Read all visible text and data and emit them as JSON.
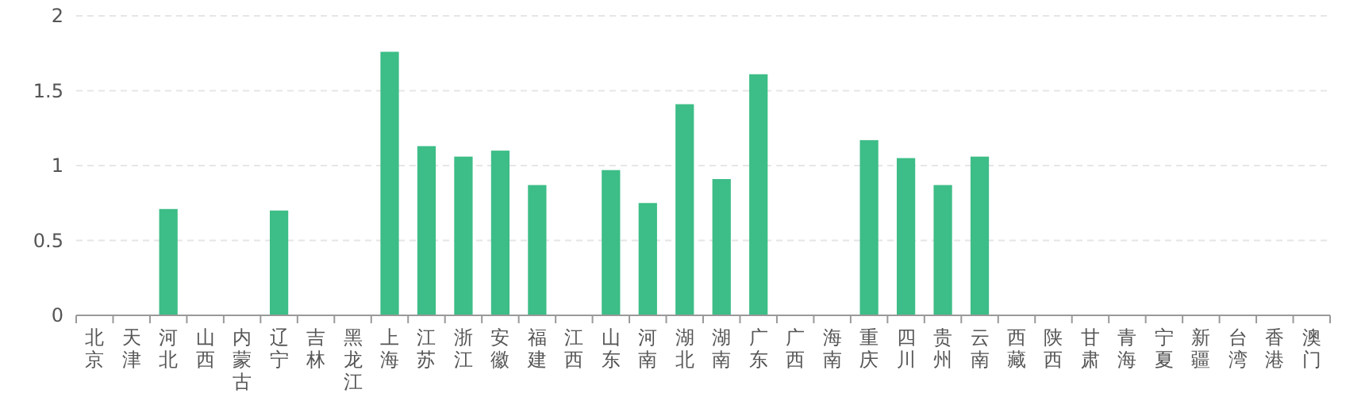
{
  "chart_data": {
    "type": "bar",
    "categories": [
      "北京",
      "天津",
      "河北",
      "山西",
      "内蒙古",
      "辽宁",
      "吉林",
      "黑龙江",
      "上海",
      "江苏",
      "浙江",
      "安徽",
      "福建",
      "江西",
      "山东",
      "河南",
      "湖北",
      "湖南",
      "广东",
      "广西",
      "海南",
      "重庆",
      "四川",
      "贵州",
      "云南",
      "西藏",
      "陕西",
      "甘肃",
      "青海",
      "宁夏",
      "新疆",
      "台湾",
      "香港",
      "澳门"
    ],
    "values": [
      0,
      0,
      0.71,
      0,
      0,
      0.7,
      0,
      0,
      1.76,
      1.13,
      1.06,
      1.1,
      0.87,
      0,
      0.97,
      0.75,
      1.41,
      0.91,
      1.61,
      0,
      0,
      1.17,
      1.05,
      0.87,
      1.06,
      0,
      0,
      0,
      0,
      0,
      0,
      0,
      0,
      0
    ],
    "color": "#3dbd87",
    "ylim": [
      0,
      2
    ],
    "yticks": [
      0,
      0.5,
      1,
      1.5,
      2
    ],
    "grid": "y"
  }
}
